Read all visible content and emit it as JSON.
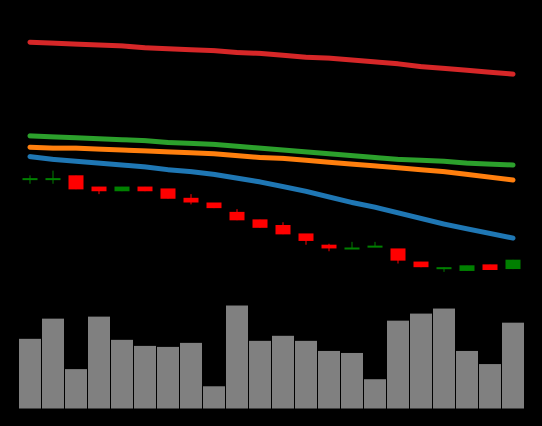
{
  "chart_data": [
    {
      "type": "candlestick",
      "title": "",
      "xlabel": "",
      "ylabel": "",
      "grid": false,
      "legend": "none",
      "colors": {
        "background": "#000000",
        "up": "#008000",
        "down": "#ff0000"
      },
      "ylim": [
        0,
        320
      ],
      "candles": [
        {
          "open": 130.0,
          "close": 130.0,
          "high": 133.0,
          "low": 124.0
        },
        {
          "open": 130.0,
          "close": 130.0,
          "high": 138.0,
          "low": 124.0
        },
        {
          "open": 133.0,
          "close": 118.0,
          "high": 133.0,
          "low": 118.0
        },
        {
          "open": 121.0,
          "close": 116.0,
          "high": 121.0,
          "low": 113.0
        },
        {
          "open": 116.0,
          "close": 121.0,
          "high": 121.0,
          "low": 116.0
        },
        {
          "open": 121.0,
          "close": 116.0,
          "high": 121.0,
          "low": 116.0
        },
        {
          "open": 119.0,
          "close": 108.0,
          "high": 119.0,
          "low": 108.0
        },
        {
          "open": 109.0,
          "close": 104.0,
          "high": 113.0,
          "low": 102.0
        },
        {
          "open": 104.0,
          "close": 98.0,
          "high": 104.0,
          "low": 98.0
        },
        {
          "open": 94.0,
          "close": 85.0,
          "high": 97.0,
          "low": 85.0
        },
        {
          "open": 86.0,
          "close": 77.0,
          "high": 86.0,
          "low": 77.0
        },
        {
          "open": 80.0,
          "close": 70.0,
          "high": 83.0,
          "low": 70.0
        },
        {
          "open": 71.0,
          "close": 63.0,
          "high": 71.0,
          "low": 59.0
        },
        {
          "open": 59.0,
          "close": 55.0,
          "high": 60.0,
          "low": 52.0
        },
        {
          "open": 54.0,
          "close": 56.0,
          "high": 62.0,
          "low": 54.0
        },
        {
          "open": 56.0,
          "close": 58.0,
          "high": 62.0,
          "low": 56.0
        },
        {
          "open": 55.0,
          "close": 42.0,
          "high": 55.0,
          "low": 39.0
        },
        {
          "open": 41.0,
          "close": 35.0,
          "high": 41.0,
          "low": 35.0
        },
        {
          "open": 35.0,
          "close": 35.0,
          "high": 35.0,
          "low": 30.0
        },
        {
          "open": 31.0,
          "close": 37.0,
          "high": 37.0,
          "low": 31.0
        },
        {
          "open": 38.0,
          "close": 32.0,
          "high": 38.0,
          "low": 32.0
        },
        {
          "open": 33.0,
          "close": 43.0,
          "high": 43.0,
          "low": 33.0
        }
      ],
      "moving_averages": [
        {
          "color": "#d62728",
          "values": [
            275,
            274,
            273,
            272,
            271,
            269,
            268,
            267,
            266,
            264,
            263,
            261,
            259,
            258,
            256,
            254,
            252,
            249,
            247,
            245,
            243,
            241
          ]
        },
        {
          "color": "#2ca02c",
          "values": [
            175,
            174,
            173,
            172,
            171,
            170,
            168,
            167,
            166,
            164,
            162,
            160,
            158,
            156,
            154,
            152,
            150,
            149,
            148,
            146,
            145,
            144
          ]
        },
        {
          "color": "#ff7f0e",
          "values": [
            163,
            162,
            162,
            161,
            160,
            159,
            158,
            157,
            156,
            154,
            152,
            151,
            149,
            147,
            145,
            143,
            141,
            139,
            137,
            134,
            131,
            128
          ]
        },
        {
          "color": "#1f77b4",
          "values": [
            153,
            150,
            148,
            146,
            144,
            142,
            139,
            137,
            134,
            130,
            126,
            121,
            116,
            110,
            104,
            99,
            93,
            87,
            81,
            76,
            71,
            66
          ]
        }
      ]
    },
    {
      "type": "bar",
      "title": "",
      "xlabel": "",
      "ylabel": "",
      "grid": false,
      "legend": "none",
      "colors": {
        "bar": "#808080",
        "edge": "#000000"
      },
      "ylim": [
        0,
        105
      ],
      "values": [
        70,
        90,
        40,
        92,
        69,
        63,
        62,
        66,
        23,
        103,
        68,
        73,
        68,
        58,
        56,
        30,
        88,
        95,
        100,
        58,
        45,
        86
      ]
    }
  ]
}
